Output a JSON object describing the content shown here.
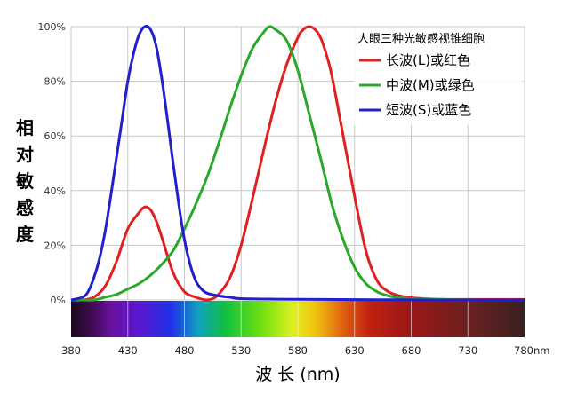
{
  "chart_data": {
    "type": "line",
    "xlabel": "波 长 (nm)",
    "ylabel": [
      "相",
      "对",
      "敏",
      "感",
      "度"
    ],
    "xlim": [
      380,
      780
    ],
    "ylim": [
      0,
      100
    ],
    "x_ticks": [
      "380",
      "430",
      "480",
      "530",
      "580",
      "630",
      "680",
      "730",
      "780nm"
    ],
    "y_ticks": [
      "0%",
      "20%",
      "40%",
      "60%",
      "80%",
      "100%"
    ],
    "grid": true,
    "legend": {
      "title": "人眼三种光敏感视锥细胞",
      "position": "top-right"
    },
    "spectrum_bar": true,
    "series": [
      {
        "name": "长波(L)或红色",
        "color": "#e02020",
        "x": [
          380,
          390,
          400,
          410,
          420,
          430,
          440,
          445,
          450,
          455,
          460,
          470,
          480,
          490,
          495,
          500,
          505,
          510,
          520,
          530,
          540,
          550,
          560,
          570,
          580,
          585,
          590,
          595,
          600,
          605,
          610,
          620,
          630,
          640,
          650,
          660,
          670,
          680,
          690,
          700,
          720,
          740,
          760,
          780
        ],
        "y": [
          0,
          0,
          1,
          5,
          14,
          26,
          32,
          34,
          33,
          29,
          23,
          10,
          3,
          1,
          0.3,
          0,
          0.5,
          2,
          8,
          20,
          37,
          55,
          72,
          86,
          96,
          99,
          100,
          99,
          96,
          90,
          82,
          60,
          38,
          18,
          7,
          3,
          1.5,
          0.8,
          0.5,
          0.3,
          0.2,
          0.2,
          0.2,
          0.2
        ]
      },
      {
        "name": "中波(M)或绿色",
        "color": "#2aa82a",
        "x": [
          380,
          390,
          400,
          410,
          420,
          430,
          440,
          450,
          460,
          470,
          480,
          490,
          500,
          510,
          520,
          530,
          540,
          550,
          555,
          560,
          570,
          580,
          590,
          600,
          610,
          620,
          630,
          640,
          650,
          660,
          670,
          680,
          700,
          720,
          740,
          760,
          780
        ],
        "y": [
          0,
          0,
          0,
          1,
          2,
          4,
          6,
          9,
          13,
          18,
          26,
          35,
          45,
          57,
          70,
          82,
          92,
          98,
          100,
          99,
          95,
          84,
          68,
          52,
          35,
          22,
          12,
          6,
          3,
          1.5,
          0.8,
          0.4,
          0.2,
          0.1,
          0,
          0,
          0
        ]
      },
      {
        "name": "短波(S)或蓝色",
        "color": "#2020cc",
        "x": [
          380,
          390,
          395,
          400,
          405,
          410,
          415,
          420,
          425,
          430,
          435,
          440,
          445,
          450,
          455,
          460,
          465,
          470,
          475,
          480,
          485,
          490,
          495,
          500,
          510,
          520,
          530,
          560,
          600,
          650,
          700,
          780
        ],
        "y": [
          0,
          1,
          3,
          8,
          15,
          25,
          38,
          52,
          66,
          80,
          90,
          97,
          100,
          99,
          93,
          81,
          66,
          50,
          35,
          22,
          13,
          7,
          4,
          2.5,
          1.5,
          1,
          0.5,
          0.3,
          0.2,
          0.1,
          0,
          0
        ]
      }
    ]
  }
}
